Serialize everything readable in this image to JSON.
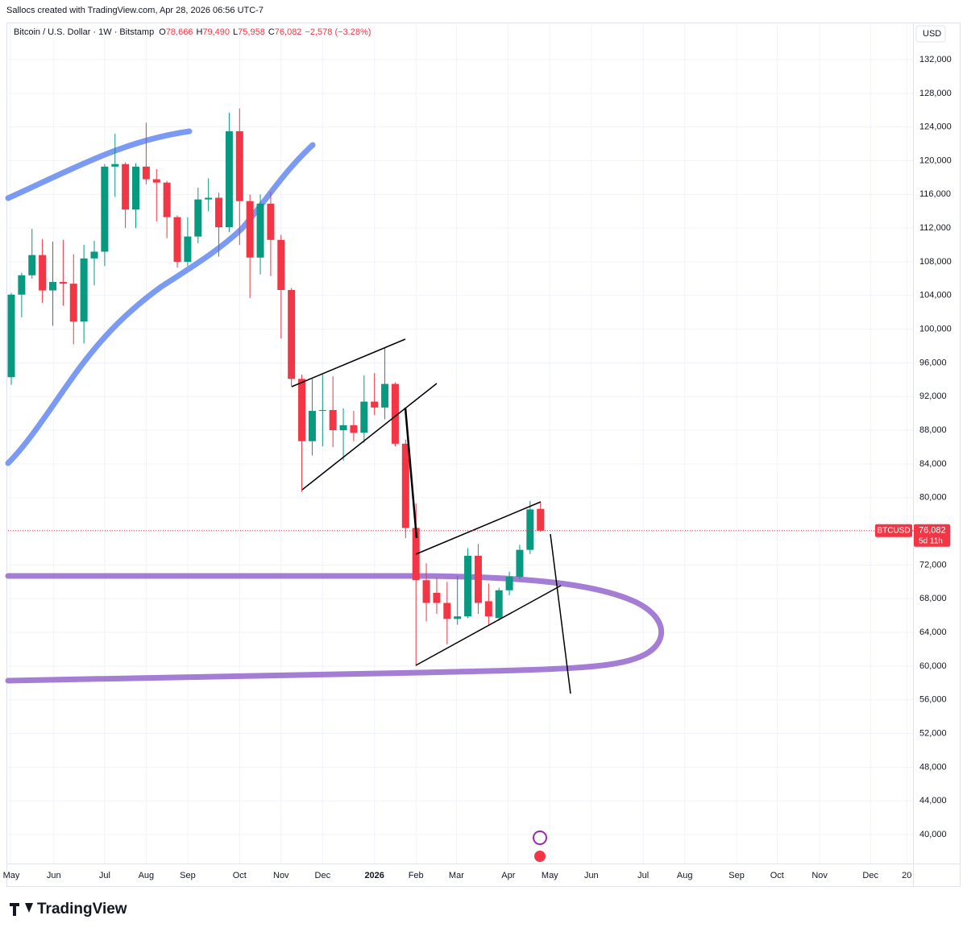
{
  "header": {
    "credit": "Sallocs created with TradingView.com, Apr 28, 2026 06:56 UTC-7",
    "symbol": "Bitcoin / U.S. Dollar · 1W · Bitstamp",
    "ohlc": [
      {
        "key": "O",
        "value": "78,666"
      },
      {
        "key": "H",
        "value": "79,490"
      },
      {
        "key": "L",
        "value": "75,958"
      },
      {
        "key": "C",
        "value": "76,082"
      }
    ],
    "change": "−2,578 (−3.28%)",
    "currency": "USD"
  },
  "footer": {
    "logo": "TradingView"
  },
  "chart_data": {
    "type": "candlestick",
    "categories": [
      null,
      null,
      null,
      null,
      null,
      null,
      null,
      null,
      null,
      null,
      null,
      null,
      null,
      null,
      null,
      null,
      null,
      null,
      null,
      null,
      null,
      null,
      null,
      null,
      null,
      null,
      null,
      null,
      null,
      null,
      null,
      null,
      null,
      null,
      null,
      null,
      null,
      null,
      null,
      null,
      null,
      null,
      null,
      null,
      null,
      null,
      null,
      null,
      null,
      null,
      null,
      null
    ],
    "open": [
      94300,
      104100,
      106400,
      108800,
      104600,
      105600,
      105400,
      100900,
      108400,
      109200,
      119300,
      119600,
      114200,
      119300,
      117800,
      117400,
      113300,
      108000,
      111000,
      115400,
      115600,
      112100,
      123500,
      115200,
      108500,
      114900,
      110600,
      104650,
      94100,
      86700,
      90300,
      90400,
      88000,
      88600,
      87700,
      91400,
      90700,
      93500,
      86400,
      76400,
      70200,
      68700,
      67500,
      65600,
      65900,
      73100,
      67700,
      65700,
      69000,
      70600,
      73800,
      78666
    ],
    "high": [
      104300,
      106700,
      111900,
      110700,
      110400,
      110600,
      108900,
      110000,
      110500,
      119600,
      123200,
      119800,
      119700,
      124500,
      119000,
      117600,
      113500,
      113300,
      116800,
      117900,
      116200,
      125700,
      126200,
      116000,
      116000,
      116300,
      111200,
      104900,
      94600,
      94100,
      94600,
      94400,
      90600,
      90300,
      94500,
      94800,
      97800,
      93700,
      86900,
      79300,
      72200,
      70500,
      70000,
      70700,
      74000,
      74500,
      69800,
      69300,
      71200,
      74400,
      79600,
      79490
    ],
    "low": [
      93400,
      101400,
      106000,
      103100,
      100400,
      102800,
      98200,
      98300,
      105200,
      107500,
      115700,
      112000,
      112000,
      117200,
      112800,
      110800,
      107300,
      107500,
      110200,
      114000,
      108600,
      111500,
      110000,
      103700,
      106500,
      106300,
      98900,
      93200,
      80700,
      85000,
      86100,
      86000,
      84400,
      86700,
      86500,
      89800,
      89300,
      86100,
      75200,
      60000,
      65300,
      66200,
      62600,
      64900,
      65700,
      66200,
      64900,
      65400,
      68400,
      70300,
      73300,
      75958
    ],
    "close": [
      104100,
      106400,
      108800,
      104600,
      105600,
      105400,
      100900,
      108400,
      109200,
      119300,
      119600,
      114200,
      119300,
      117800,
      117400,
      113300,
      108000,
      111000,
      115400,
      115600,
      112100,
      123500,
      115200,
      108500,
      114900,
      110600,
      104650,
      94100,
      86700,
      90300,
      90400,
      88000,
      88600,
      87700,
      91400,
      90700,
      93500,
      86400,
      76400,
      70200,
      67500,
      67500,
      65600,
      65900,
      73100,
      67500,
      65900,
      69000,
      70600,
      73800,
      78600,
      76082
    ],
    "up_color": "#089981",
    "down_color": "#f23645",
    "xlim": [
      -0.31,
      86.9
    ],
    "xticks": [
      {
        "value": -0.1,
        "label": "May"
      },
      {
        "value": 4.1,
        "label": "Jun"
      },
      {
        "value": 9.0,
        "label": "Jul"
      },
      {
        "value": 13.0,
        "label": "Aug"
      },
      {
        "value": 17.0,
        "label": "Sep"
      },
      {
        "value": 22.0,
        "label": "Oct"
      },
      {
        "value": 26.0,
        "label": "Nov"
      },
      {
        "value": 30.0,
        "label": "Dec"
      },
      {
        "value": 35.0,
        "label": "2026"
      },
      {
        "value": 39.0,
        "label": "Feb"
      },
      {
        "value": 42.9,
        "label": "Mar"
      },
      {
        "value": 47.9,
        "label": "Apr"
      },
      {
        "value": 51.9,
        "label": "May"
      },
      {
        "value": 55.9,
        "label": "Jun"
      },
      {
        "value": 60.9,
        "label": "Jul"
      },
      {
        "value": 64.9,
        "label": "Aug"
      },
      {
        "value": 69.9,
        "label": "Sep"
      },
      {
        "value": 73.8,
        "label": "Oct"
      },
      {
        "value": 77.9,
        "label": "Nov"
      },
      {
        "value": 82.8,
        "label": "Dec"
      },
      {
        "value": 86.3,
        "label": "20"
      }
    ],
    "ylim": [
      36560,
      136210
    ],
    "yticks": [
      {
        "value": 40000,
        "label": "40,000"
      },
      {
        "value": 44000,
        "label": "44,000"
      },
      {
        "value": 48000,
        "label": "48,000"
      },
      {
        "value": 52000,
        "label": "52,000"
      },
      {
        "value": 56000,
        "label": "56,000"
      },
      {
        "value": 60000,
        "label": "60,000"
      },
      {
        "value": 64000,
        "label": "64,000"
      },
      {
        "value": 68000,
        "label": "68,000"
      },
      {
        "value": 72000,
        "label": "72,000"
      },
      {
        "value": 76000,
        "label": "76,000"
      },
      {
        "value": 80000,
        "label": "80,000"
      },
      {
        "value": 84000,
        "label": "84,000"
      },
      {
        "value": 88000,
        "label": "88,000"
      },
      {
        "value": 92000,
        "label": "92,000"
      },
      {
        "value": 96000,
        "label": "96,000"
      },
      {
        "value": 100000,
        "label": "100,000"
      },
      {
        "value": 104000,
        "label": "104,000"
      },
      {
        "value": 108000,
        "label": "108,000"
      },
      {
        "value": 112000,
        "label": "112,000"
      },
      {
        "value": 116000,
        "label": "116,000"
      },
      {
        "value": 120000,
        "label": "120,000"
      },
      {
        "value": 124000,
        "label": "124,000"
      },
      {
        "value": 128000,
        "label": "128,000"
      },
      {
        "value": 132000,
        "label": "132,000"
      }
    ],
    "grid": true,
    "last_price": {
      "symbol": "BTCUSD",
      "value": 76082,
      "label": "76,082",
      "countdown": "5d 11h"
    }
  }
}
